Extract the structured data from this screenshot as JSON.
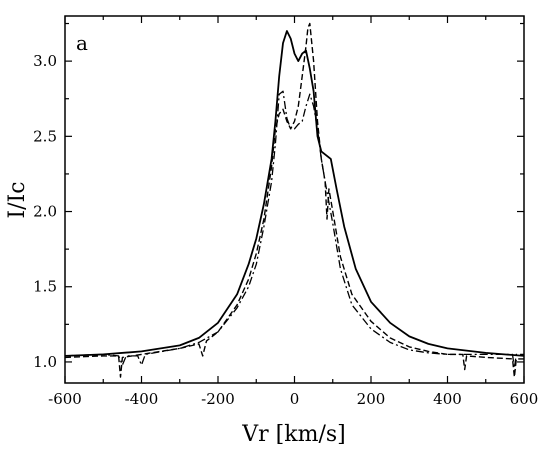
{
  "chart_data": {
    "type": "line",
    "panel_label": "a",
    "xlabel": "Vr [km/s]",
    "ylabel": "I/Ic",
    "xlim": [
      -600,
      600
    ],
    "ylim": [
      0.86,
      3.3
    ],
    "xticks": [
      -600,
      -400,
      -200,
      0,
      200,
      400,
      600
    ],
    "xtick_labels": [
      "-600",
      "-400",
      "-200",
      "0",
      "200",
      "400",
      "600"
    ],
    "yticks": [
      1.0,
      1.5,
      2.0,
      2.5,
      3.0
    ],
    "ytick_labels": [
      "1.0",
      "1.5",
      "2.0",
      "2.5",
      "3.0"
    ],
    "grid": false,
    "legend": "none",
    "series": [
      {
        "style": "solid",
        "points": [
          [
            -600,
            1.04
          ],
          [
            -500,
            1.05
          ],
          [
            -400,
            1.07
          ],
          [
            -300,
            1.11
          ],
          [
            -250,
            1.16
          ],
          [
            -200,
            1.26
          ],
          [
            -150,
            1.45
          ],
          [
            -120,
            1.65
          ],
          [
            -100,
            1.82
          ],
          [
            -80,
            2.05
          ],
          [
            -60,
            2.35
          ],
          [
            -50,
            2.6
          ],
          [
            -40,
            2.9
          ],
          [
            -30,
            3.12
          ],
          [
            -20,
            3.2
          ],
          [
            -10,
            3.15
          ],
          [
            0,
            3.05
          ],
          [
            10,
            3.0
          ],
          [
            20,
            3.05
          ],
          [
            30,
            3.07
          ],
          [
            40,
            2.95
          ],
          [
            50,
            2.8
          ],
          [
            60,
            2.5
          ],
          [
            70,
            2.4
          ],
          [
            80,
            2.38
          ],
          [
            95,
            2.35
          ],
          [
            110,
            2.15
          ],
          [
            130,
            1.9
          ],
          [
            160,
            1.62
          ],
          [
            200,
            1.4
          ],
          [
            250,
            1.26
          ],
          [
            300,
            1.17
          ],
          [
            350,
            1.12
          ],
          [
            400,
            1.09
          ],
          [
            500,
            1.06
          ],
          [
            600,
            1.04
          ]
        ]
      },
      {
        "style": "dashed",
        "points": [
          [
            -600,
            1.03
          ],
          [
            -500,
            1.04
          ],
          [
            -460,
            1.04
          ],
          [
            -455,
            0.9
          ],
          [
            -450,
            1.03
          ],
          [
            -400,
            1.05
          ],
          [
            -300,
            1.09
          ],
          [
            -250,
            1.12
          ],
          [
            -240,
            1.04
          ],
          [
            -230,
            1.14
          ],
          [
            -200,
            1.2
          ],
          [
            -150,
            1.38
          ],
          [
            -120,
            1.55
          ],
          [
            -100,
            1.72
          ],
          [
            -80,
            1.95
          ],
          [
            -60,
            2.3
          ],
          [
            -50,
            2.55
          ],
          [
            -40,
            2.65
          ],
          [
            -30,
            2.68
          ],
          [
            -20,
            2.6
          ],
          [
            -10,
            2.55
          ],
          [
            0,
            2.6
          ],
          [
            10,
            2.7
          ],
          [
            20,
            2.9
          ],
          [
            30,
            3.1
          ],
          [
            35,
            3.22
          ],
          [
            40,
            3.25
          ],
          [
            50,
            3.0
          ],
          [
            60,
            2.6
          ],
          [
            70,
            2.35
          ],
          [
            80,
            2.2
          ],
          [
            85,
            1.95
          ],
          [
            90,
            2.15
          ],
          [
            100,
            2.0
          ],
          [
            120,
            1.7
          ],
          [
            150,
            1.45
          ],
          [
            200,
            1.27
          ],
          [
            250,
            1.16
          ],
          [
            300,
            1.1
          ],
          [
            350,
            1.07
          ],
          [
            400,
            1.05
          ],
          [
            440,
            1.05
          ],
          [
            445,
            0.95
          ],
          [
            450,
            1.04
          ],
          [
            500,
            1.03
          ],
          [
            570,
            1.02
          ],
          [
            575,
            0.9
          ],
          [
            580,
            1.02
          ],
          [
            600,
            1.02
          ]
        ]
      },
      {
        "style": "dash-dot",
        "points": [
          [
            -600,
            1.04
          ],
          [
            -500,
            1.05
          ],
          [
            -460,
            1.04
          ],
          [
            -450,
            0.98
          ],
          [
            -440,
            1.04
          ],
          [
            -410,
            1.04
          ],
          [
            -400,
            0.98
          ],
          [
            -390,
            1.05
          ],
          [
            -300,
            1.09
          ],
          [
            -250,
            1.13
          ],
          [
            -200,
            1.2
          ],
          [
            -150,
            1.36
          ],
          [
            -120,
            1.5
          ],
          [
            -100,
            1.65
          ],
          [
            -80,
            1.9
          ],
          [
            -60,
            2.2
          ],
          [
            -50,
            2.45
          ],
          [
            -40,
            2.78
          ],
          [
            -30,
            2.8
          ],
          [
            -20,
            2.62
          ],
          [
            -10,
            2.55
          ],
          [
            0,
            2.55
          ],
          [
            10,
            2.58
          ],
          [
            20,
            2.6
          ],
          [
            30,
            2.7
          ],
          [
            40,
            2.78
          ],
          [
            50,
            2.7
          ],
          [
            60,
            2.55
          ],
          [
            70,
            2.35
          ],
          [
            80,
            2.2
          ],
          [
            100,
            1.92
          ],
          [
            120,
            1.62
          ],
          [
            150,
            1.38
          ],
          [
            200,
            1.22
          ],
          [
            250,
            1.13
          ],
          [
            300,
            1.08
          ],
          [
            350,
            1.06
          ],
          [
            400,
            1.05
          ],
          [
            500,
            1.05
          ],
          [
            570,
            1.05
          ],
          [
            575,
            0.96
          ],
          [
            580,
            1.05
          ],
          [
            600,
            1.05
          ]
        ]
      }
    ]
  }
}
